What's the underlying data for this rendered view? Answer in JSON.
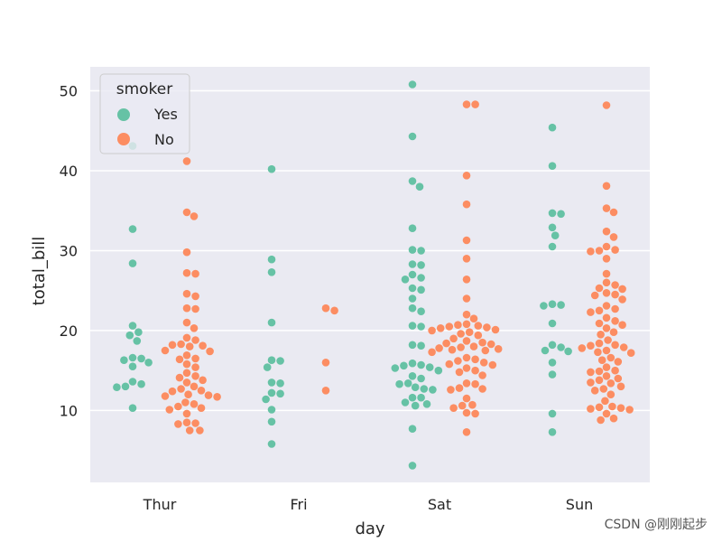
{
  "chart_data": {
    "type": "scatter",
    "subtype": "swarm",
    "title": "",
    "xlabel": "day",
    "ylabel": "total_bill",
    "categories": [
      "Thur",
      "Fri",
      "Sat",
      "Sun"
    ],
    "ylim": [
      1,
      53
    ],
    "yticks": [
      10,
      20,
      30,
      40,
      50
    ],
    "grid": true,
    "legend": {
      "title": "smoker",
      "placement": "top-left",
      "entries": [
        {
          "label": "Yes",
          "color": "#66c2a5"
        },
        {
          "label": "No",
          "color": "#fc8d62"
        }
      ]
    },
    "series": [
      {
        "name": "Yes",
        "color": "#66c2a5",
        "values": {
          "Thur": [
            43.1,
            32.7,
            28.4,
            20.6,
            19.8,
            19.4,
            18.7,
            16.6,
            16.5,
            16.3,
            16.0,
            15.5,
            13.6,
            13.3,
            13.0,
            12.9,
            10.3
          ],
          "Fri": [
            40.2,
            28.9,
            27.3,
            21.0,
            16.3,
            16.2,
            15.4,
            13.5,
            13.4,
            12.2,
            12.1,
            11.4,
            10.1,
            8.6,
            5.8
          ],
          "Sat": [
            50.8,
            44.3,
            38.7,
            38.0,
            32.8,
            30.1,
            30.0,
            28.3,
            28.2,
            27.0,
            26.6,
            26.4,
            25.3,
            25.1,
            24.0,
            22.8,
            22.4,
            20.6,
            20.5,
            18.2,
            18.1,
            15.9,
            15.7,
            15.6,
            15.4,
            15.3,
            15.0,
            14.3,
            14.0,
            13.4,
            13.3,
            12.9,
            12.7,
            12.6,
            11.6,
            11.6,
            11.0,
            10.8,
            10.6,
            7.7,
            3.1
          ],
          "Sun": [
            45.4,
            40.6,
            34.7,
            34.6,
            32.9,
            31.9,
            30.5,
            23.3,
            23.2,
            23.1,
            20.9,
            18.2,
            17.9,
            17.5,
            17.4,
            16.0,
            14.5,
            9.6,
            7.3
          ]
        }
      },
      {
        "name": "No",
        "color": "#fc8d62",
        "values": {
          "Thur": [
            41.2,
            34.8,
            34.3,
            29.8,
            27.2,
            27.1,
            24.6,
            24.3,
            22.8,
            22.7,
            21.0,
            20.3,
            19.1,
            18.8,
            18.3,
            18.2,
            18.1,
            18.0,
            17.5,
            17.4,
            16.9,
            16.5,
            16.4,
            15.8,
            15.4,
            14.7,
            14.3,
            14.1,
            13.8,
            13.5,
            13.0,
            12.7,
            12.5,
            12.4,
            12.0,
            11.9,
            11.8,
            11.7,
            11.0,
            10.8,
            10.5,
            10.3,
            10.1,
            9.6,
            8.5,
            8.4,
            8.3,
            7.5,
            7.5
          ],
          "Fri": [
            22.8,
            22.5,
            16.0,
            12.5
          ],
          "Sat": [
            48.3,
            48.3,
            39.4,
            35.8,
            31.3,
            29.0,
            26.4,
            24.0,
            22.0,
            21.5,
            20.8,
            20.7,
            20.6,
            20.5,
            20.4,
            20.3,
            20.1,
            20.0,
            19.8,
            19.6,
            19.4,
            19.0,
            18.7,
            18.5,
            18.4,
            18.3,
            18.0,
            17.9,
            17.8,
            17.7,
            17.6,
            17.5,
            17.3,
            16.6,
            16.4,
            16.2,
            16.0,
            15.8,
            15.7,
            15.3,
            15.0,
            14.8,
            14.4,
            13.4,
            13.3,
            12.8,
            12.7,
            12.6,
            11.5,
            10.7,
            10.6,
            10.3,
            9.7,
            9.6,
            7.3
          ],
          "Sun": [
            48.2,
            38.1,
            35.3,
            34.8,
            32.4,
            31.7,
            30.5,
            30.1,
            30.0,
            29.9,
            29.0,
            27.1,
            26.0,
            25.7,
            25.3,
            25.2,
            24.7,
            24.5,
            24.4,
            23.9,
            23.1,
            22.7,
            22.5,
            22.3,
            21.6,
            21.2,
            20.9,
            20.7,
            20.3,
            19.8,
            19.5,
            18.8,
            18.4,
            18.2,
            18.1,
            17.9,
            17.8,
            17.5,
            17.3,
            17.2,
            16.6,
            16.3,
            16.1,
            15.4,
            15.0,
            14.9,
            14.8,
            14.3,
            14.0,
            13.8,
            13.5,
            13.4,
            13.0,
            12.7,
            12.5,
            12.0,
            11.2,
            10.5,
            10.4,
            10.3,
            10.2,
            10.1,
            9.6,
            9.0,
            8.8
          ]
        }
      }
    ]
  },
  "watermark": "CSDN @刚刚起步"
}
